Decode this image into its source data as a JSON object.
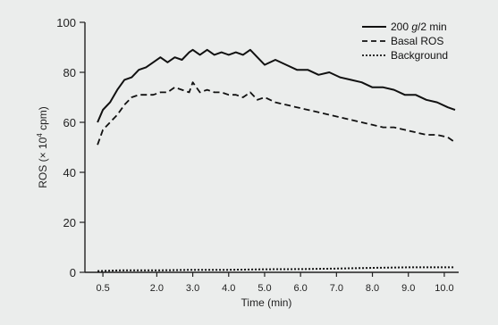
{
  "chart_data": {
    "type": "line",
    "title": "",
    "xlabel": "Time (min)",
    "ylabel": "ROS (× 10⁴ cpm)",
    "ylabel_parts": {
      "before": "ROS (× 10",
      "sup": "4",
      "after": " cpm)"
    },
    "ylim": [
      0,
      100
    ],
    "xlim": [
      0,
      10.4
    ],
    "yticks": [
      0,
      20,
      40,
      60,
      80,
      100
    ],
    "xticks": [
      {
        "x": 0.5,
        "label": "0.5"
      },
      {
        "x": 2.0,
        "label": "2.0"
      },
      {
        "x": 3.0,
        "label": "3.0"
      },
      {
        "x": 4.0,
        "label": "4.0"
      },
      {
        "x": 5.0,
        "label": "5.0"
      },
      {
        "x": 6.0,
        "label": "6.0"
      },
      {
        "x": 7.0,
        "label": "7.0"
      },
      {
        "x": 8.0,
        "label": "8.0"
      },
      {
        "x": 9.0,
        "label": "9.0"
      },
      {
        "x": 10.0,
        "label": "10.0"
      }
    ],
    "legend_position": "top-right",
    "grid": false,
    "series": [
      {
        "name": "200 g/2 min",
        "name_parts": {
          "before": "200 ",
          "ital": "g",
          "after": "/2 min"
        },
        "style": "solid",
        "color": "#111111",
        "x": [
          0.35,
          0.5,
          0.7,
          0.9,
          1.1,
          1.3,
          1.5,
          1.7,
          1.9,
          2.1,
          2.3,
          2.5,
          2.7,
          2.9,
          3.0,
          3.2,
          3.4,
          3.6,
          3.8,
          4.0,
          4.2,
          4.4,
          4.6,
          4.8,
          5.0,
          5.3,
          5.6,
          5.9,
          6.2,
          6.5,
          6.8,
          7.1,
          7.4,
          7.7,
          8.0,
          8.3,
          8.6,
          8.9,
          9.2,
          9.5,
          9.8,
          10.1,
          10.3
        ],
        "y": [
          60,
          65,
          68,
          73,
          77,
          78,
          81,
          82,
          84,
          86,
          84,
          86,
          85,
          88,
          89,
          87,
          89,
          87,
          88,
          87,
          88,
          87,
          89,
          86,
          83,
          85,
          83,
          81,
          81,
          79,
          80,
          78,
          77,
          76,
          74,
          74,
          73,
          71,
          71,
          69,
          68,
          66,
          65
        ]
      },
      {
        "name": "Basal ROS",
        "style": "dashed",
        "color": "#111111",
        "x": [
          0.35,
          0.5,
          0.7,
          0.9,
          1.1,
          1.3,
          1.5,
          1.7,
          1.9,
          2.1,
          2.3,
          2.5,
          2.7,
          2.9,
          3.0,
          3.2,
          3.4,
          3.6,
          3.8,
          4.0,
          4.2,
          4.4,
          4.6,
          4.8,
          5.0,
          5.3,
          5.6,
          5.9,
          6.2,
          6.5,
          6.8,
          7.1,
          7.4,
          7.7,
          8.0,
          8.3,
          8.6,
          8.9,
          9.2,
          9.5,
          9.8,
          10.1,
          10.3
        ],
        "y": [
          51,
          57,
          60,
          63,
          67,
          70,
          71,
          71,
          71,
          72,
          72,
          74,
          73,
          72,
          76,
          72,
          73,
          72,
          72,
          71,
          71,
          70,
          72,
          69,
          70,
          68,
          67,
          66,
          65,
          64,
          63,
          62,
          61,
          60,
          59,
          58,
          58,
          57,
          56,
          55,
          55,
          54,
          52
        ]
      },
      {
        "name": "Background",
        "style": "dotted",
        "color": "#111111",
        "x": [
          0.35,
          1.0,
          2.0,
          3.0,
          4.0,
          5.0,
          6.0,
          7.0,
          8.0,
          9.0,
          10.0,
          10.3
        ],
        "y": [
          0.5,
          0.8,
          0.8,
          1.0,
          1.0,
          1.2,
          1.3,
          1.5,
          1.8,
          2.0,
          2.0,
          2.0
        ]
      }
    ]
  }
}
